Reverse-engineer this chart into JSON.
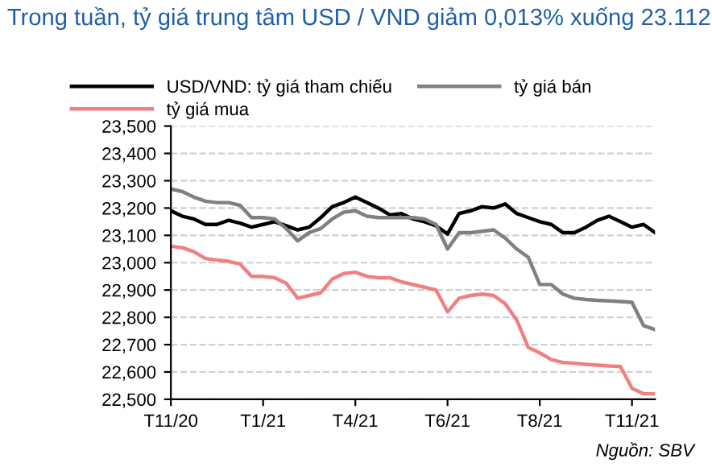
{
  "chart_data": {
    "type": "line",
    "title": "Trong tuần, tỷ giá trung tâm USD / VND giảm 0,013% xuống 23.112",
    "annotations": [
      "Nguồn: SBV"
    ],
    "categories": [
      "T11/20",
      null,
      null,
      null,
      null,
      null,
      null,
      null,
      "T1/21",
      null,
      null,
      null,
      null,
      null,
      null,
      null,
      "T4/21",
      null,
      null,
      null,
      null,
      null,
      null,
      null,
      "T6/21",
      null,
      null,
      null,
      null,
      null,
      null,
      null,
      "T8/21",
      null,
      null,
      null,
      null,
      null,
      null,
      null,
      "T11/21",
      null,
      null
    ],
    "series": [
      {
        "name": "USD/VND: tỷ giá tham chiếu",
        "color": "#000000",
        "values": [
          23190,
          23170,
          23160,
          23140,
          23140,
          23155,
          23145,
          23130,
          23140,
          23150,
          23135,
          23120,
          23130,
          23165,
          23205,
          23220,
          23240,
          23220,
          23200,
          23175,
          23180,
          23160,
          23150,
          23135,
          23105,
          23180,
          23190,
          23205,
          23200,
          23215,
          23180,
          23165,
          23150,
          23140,
          23110,
          23110,
          23130,
          23155,
          23170,
          23150,
          23130,
          23140,
          23110
        ]
      },
      {
        "name": "tỷ giá mua",
        "color": "#f08080",
        "values": [
          23060,
          23055,
          23040,
          23015,
          23010,
          23005,
          22995,
          22950,
          22950,
          22945,
          22925,
          22870,
          22880,
          22890,
          22940,
          22960,
          22965,
          22950,
          22945,
          22945,
          22930,
          22920,
          22910,
          22900,
          22820,
          22870,
          22880,
          22885,
          22880,
          22850,
          22790,
          22690,
          22670,
          22645,
          22635,
          22632,
          22628,
          22625,
          22622,
          22620,
          22540,
          22520,
          22520
        ]
      },
      {
        "name": "tỷ giá bán",
        "color": "#808080",
        "values": [
          23270,
          23260,
          23240,
          23225,
          23220,
          23220,
          23210,
          23165,
          23165,
          23160,
          23125,
          23080,
          23110,
          23125,
          23160,
          23185,
          23190,
          23170,
          23165,
          23165,
          23165,
          23165,
          23160,
          23140,
          23050,
          23110,
          23110,
          23115,
          23120,
          23090,
          23050,
          23020,
          22920,
          22920,
          22885,
          22870,
          22865,
          22862,
          22860,
          22858,
          22855,
          22770,
          22755
        ]
      }
    ],
    "ylim": [
      22500,
      23500
    ],
    "yticks": [
      {
        "value": 22500,
        "label": "22,500"
      },
      {
        "value": 22600,
        "label": "22,600"
      },
      {
        "value": 22700,
        "label": "22,700"
      },
      {
        "value": 22800,
        "label": "22,800"
      },
      {
        "value": 22900,
        "label": "22,900"
      },
      {
        "value": 23000,
        "label": "23,000"
      },
      {
        "value": 23100,
        "label": "23,100"
      },
      {
        "value": 23200,
        "label": "23,200"
      },
      {
        "value": 23300,
        "label": "23,300"
      },
      {
        "value": 23400,
        "label": "23,400"
      },
      {
        "value": 23500,
        "label": "23,500"
      }
    ],
    "grid": "y",
    "legend": "top",
    "line_style": "solid",
    "marker": "none"
  }
}
